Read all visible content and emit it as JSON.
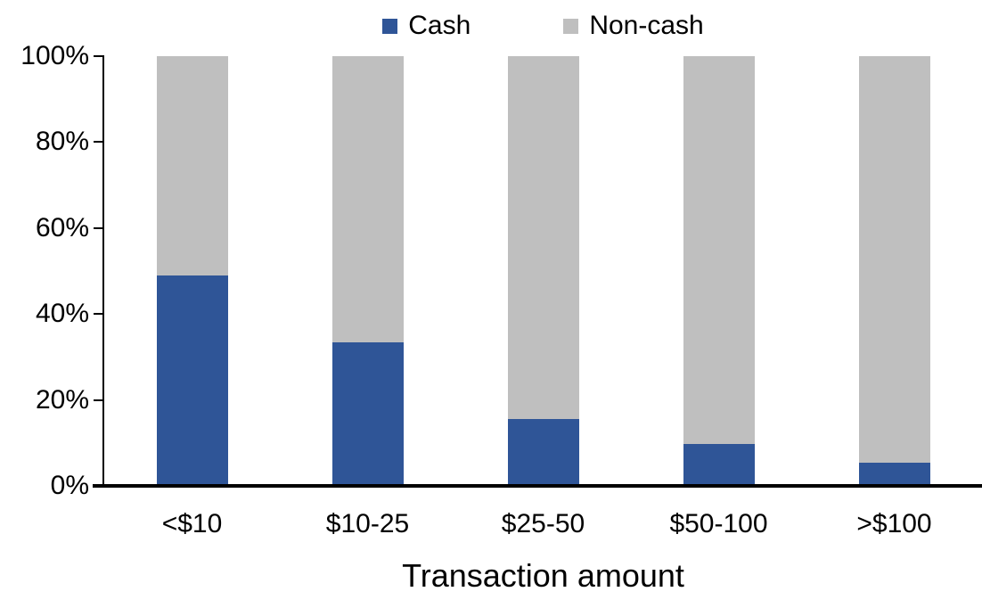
{
  "chart_data": {
    "type": "bar",
    "variant": "stacked-100-percent",
    "title": "",
    "xlabel": "Transaction amount",
    "ylabel": "",
    "categories": [
      "<$10",
      "$10-25",
      "$25-50",
      "$50-100",
      ">$100"
    ],
    "series": [
      {
        "name": "Cash",
        "color": "#2F5597",
        "values": [
          49.0,
          33.4,
          15.6,
          9.8,
          5.4
        ]
      },
      {
        "name": "Non-cash",
        "color": "#BFBFBF",
        "values": [
          51.0,
          66.6,
          84.4,
          90.2,
          94.6
        ]
      }
    ],
    "ylim": [
      0,
      100
    ],
    "y_ticks": [
      {
        "value": 0,
        "label": "0%"
      },
      {
        "value": 20,
        "label": "20%"
      },
      {
        "value": 40,
        "label": "40%"
      },
      {
        "value": 60,
        "label": "60%"
      },
      {
        "value": 80,
        "label": "80%"
      },
      {
        "value": 100,
        "label": "100%"
      }
    ],
    "legend_position": "top",
    "grid": false,
    "axis_color": "#000000",
    "background_color": "#FFFFFF"
  }
}
